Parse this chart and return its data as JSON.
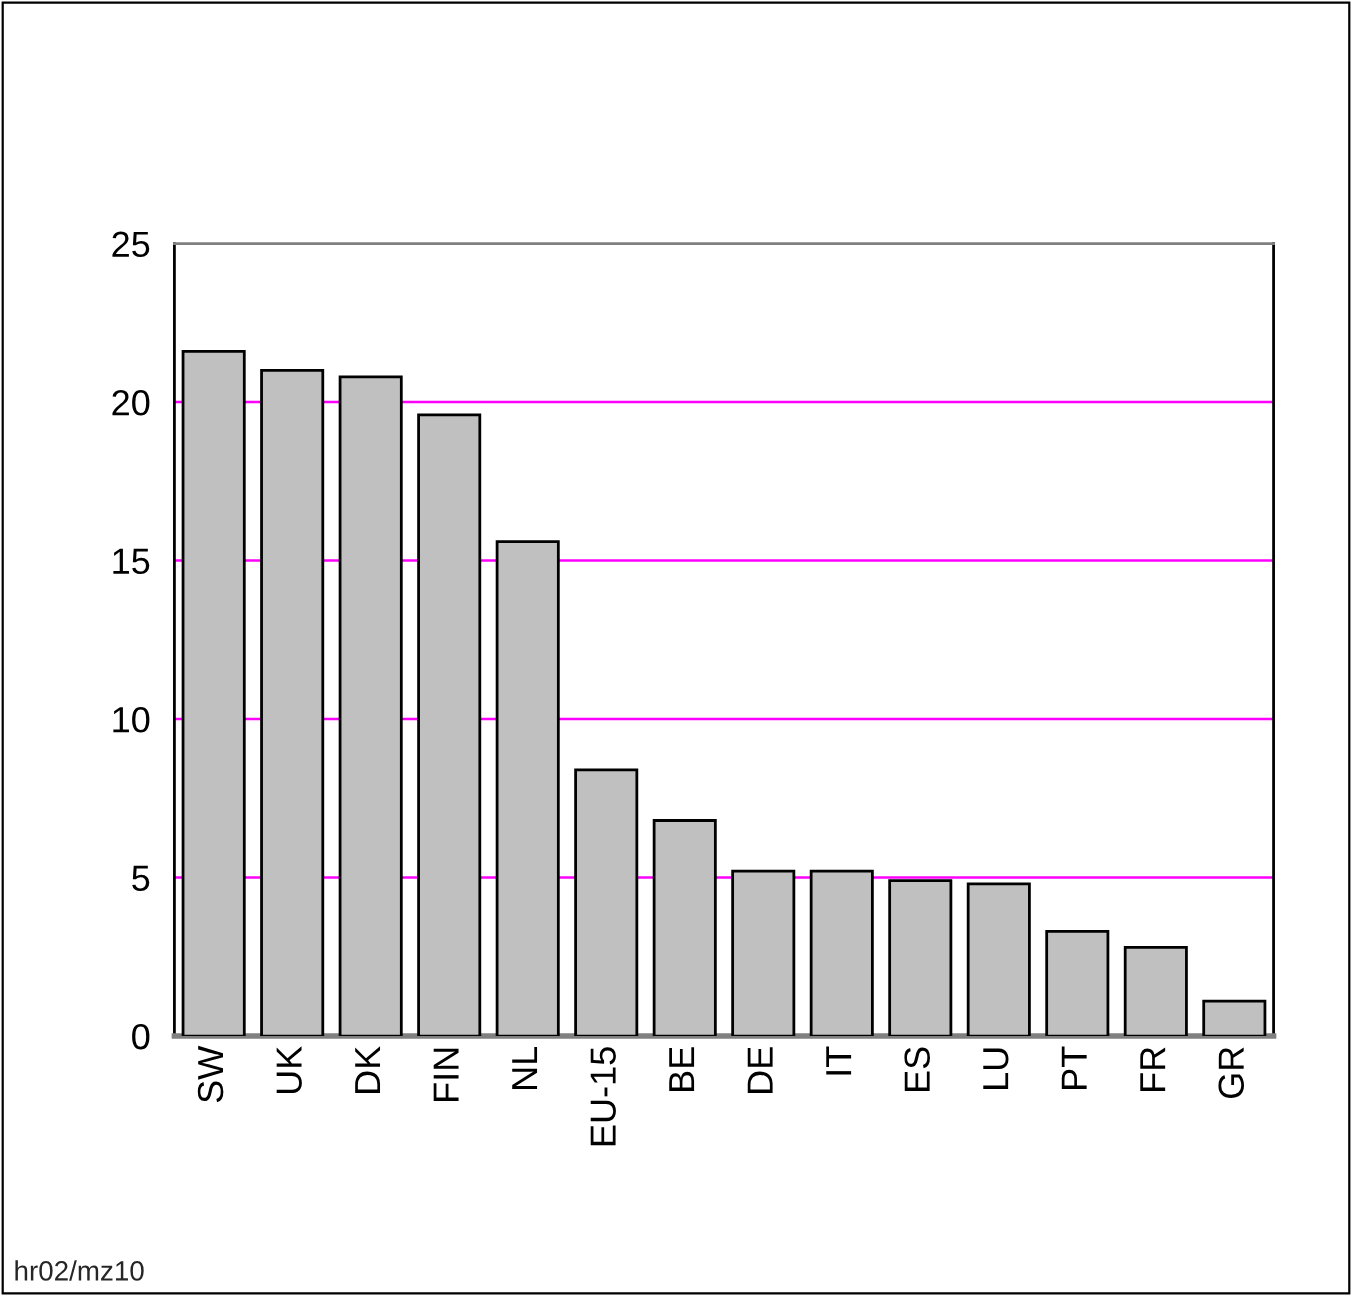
{
  "chart_data": {
    "type": "bar",
    "categories": [
      "SW",
      "UK",
      "DK",
      "FIN",
      "NL",
      "EU-15",
      "BE",
      "DE",
      "IT",
      "ES",
      "LU",
      "PT",
      "FR",
      "GR"
    ],
    "values": [
      21.6,
      21.0,
      20.8,
      19.6,
      15.6,
      8.4,
      6.8,
      5.2,
      5.2,
      4.9,
      4.8,
      3.3,
      2.8,
      1.1
    ],
    "color": "#c0c0c0",
    "ylim": [
      0,
      25
    ],
    "yticks": [
      0,
      5,
      10,
      15,
      20,
      25
    ],
    "grid": "y",
    "annotations": [
      "hr02/mz10"
    ]
  }
}
